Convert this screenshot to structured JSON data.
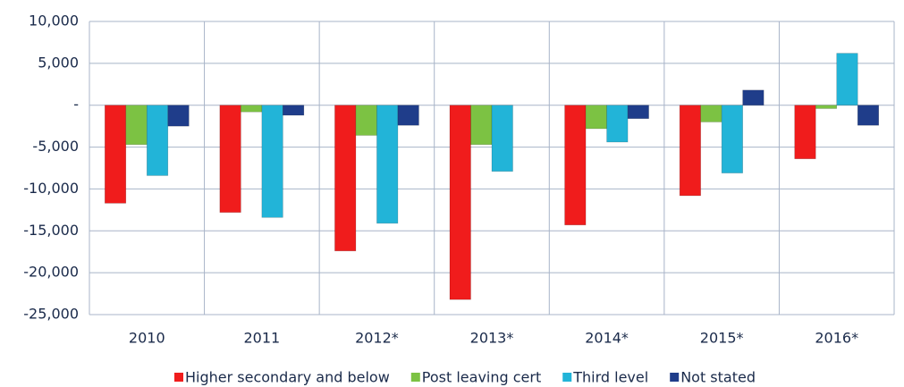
{
  "chart_data": {
    "type": "bar",
    "categories": [
      "2010",
      "2011",
      "2012*",
      "2013*",
      "2014*",
      "2015*",
      "2016*"
    ],
    "series": [
      {
        "name": "Higher secondary and below",
        "color": "#f01c1c",
        "values": [
          -11700,
          -12800,
          -17400,
          -23200,
          -14300,
          -10800,
          -6400
        ]
      },
      {
        "name": "Post leaving cert",
        "color": "#7cc243",
        "values": [
          -4700,
          -800,
          -3600,
          -4700,
          -2800,
          -2000,
          -400
        ]
      },
      {
        "name": "Third level",
        "color": "#22b4d8",
        "values": [
          -8400,
          -13400,
          -14100,
          -7900,
          -4400,
          -8100,
          6200
        ]
      },
      {
        "name": "Not stated",
        "color": "#1f3d8a",
        "values": [
          -2500,
          -1200,
          -2400,
          null,
          -1600,
          1800,
          -2400
        ]
      }
    ],
    "ylim": [
      -25000,
      10000
    ],
    "yticks": [
      {
        "value": 10000,
        "label": "10,000"
      },
      {
        "value": 5000,
        "label": "5,000"
      },
      {
        "value": 0,
        "label": "-"
      },
      {
        "value": -5000,
        "label": "-5,000"
      },
      {
        "value": -10000,
        "label": "-10,000"
      },
      {
        "value": -15000,
        "label": "-15,000"
      },
      {
        "value": -20000,
        "label": "-20,000"
      },
      {
        "value": -25000,
        "label": "-25,000"
      }
    ],
    "grid": true,
    "legend": "bottom"
  }
}
